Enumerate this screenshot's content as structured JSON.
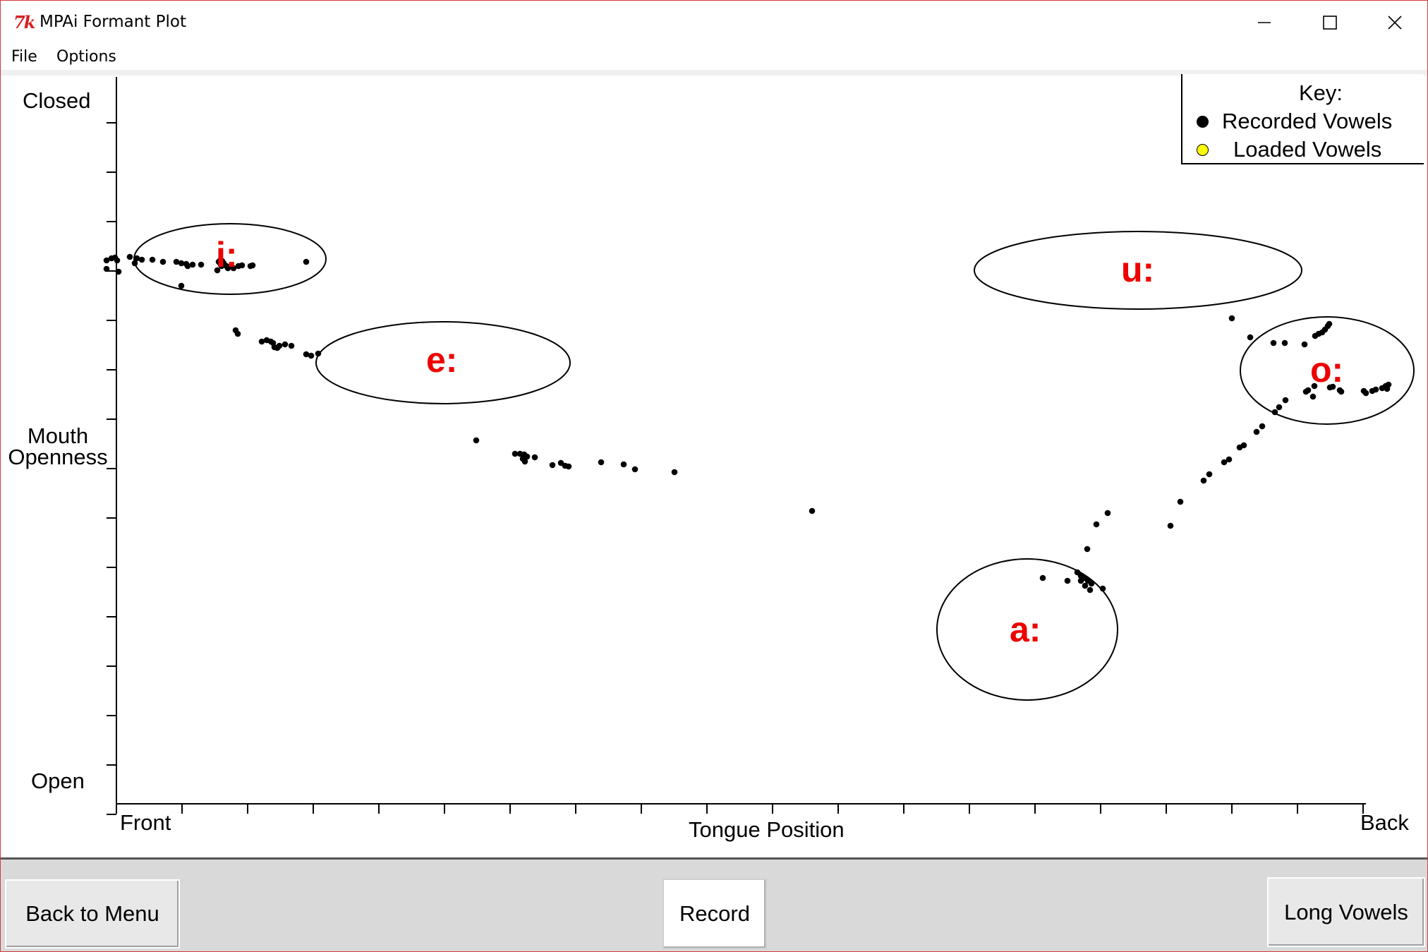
{
  "window": {
    "icon_text": "7k",
    "title": "MPAi Formant Plot"
  },
  "menu": [
    "File",
    "Options"
  ],
  "plot": {
    "y_axis": {
      "top_label": "Closed",
      "title_line1": "Mouth",
      "title_line2": "Openness",
      "bottom_label": "Open"
    },
    "x_axis": {
      "left_label": "Front",
      "title": "Tongue Position",
      "right_label": "Back"
    },
    "legend": {
      "title": "Key:",
      "items": [
        {
          "label": "Recorded Vowels",
          "color": "#000000"
        },
        {
          "label": "Loaded Vowels",
          "color": "#ffff00"
        }
      ]
    },
    "vowel_labels": [
      "i:",
      "e:",
      "u:",
      "o:",
      "a:"
    ],
    "label_color": "#ee0000"
  },
  "buttons": {
    "back": "Back to Menu",
    "record": "Record",
    "long_vowels": "Long Vowels"
  }
}
